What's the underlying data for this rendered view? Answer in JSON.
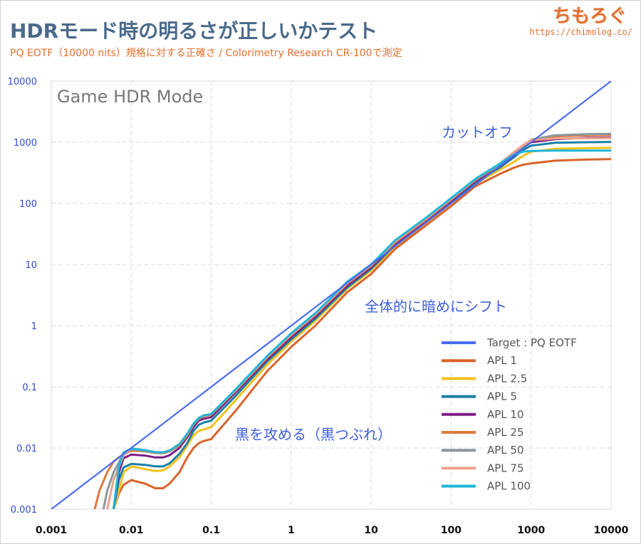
{
  "header": {
    "title": "HDRモード時の明るさが正しいかテスト",
    "subtitle": "PQ EOTF（10000 nits）規格に対する正確さ / Colorimetry Research CR-100で測定",
    "logo": "ちもろぐ",
    "url": "https://chimolog.co/"
  },
  "chart_data": {
    "type": "line",
    "title": "Game HDR Mode",
    "x_scale": "log",
    "y_scale": "log",
    "xlim": [
      0.001,
      10000
    ],
    "ylim": [
      0.001,
      10000
    ],
    "x_ticks": [
      "0.001",
      "0.01",
      "0.1",
      "1",
      "10",
      "100",
      "1000",
      "10000"
    ],
    "y_ticks": [
      "0.001",
      "0.01",
      "0.1",
      "1",
      "10",
      "100",
      "1000",
      "10000"
    ],
    "grid": true,
    "legend_position": "bottom-right",
    "annotations": [
      "カットオフ",
      "全体的に暗めにシフト",
      "黒を攻める（黒つぶれ）"
    ],
    "series": [
      {
        "name": "Target : PQ EOTF",
        "color": "#4a6cf0",
        "x": [
          0.001,
          10000
        ],
        "y": [
          0.001,
          10000
        ]
      },
      {
        "name": "APL 1",
        "color": "#d9642a",
        "x": [
          0.005,
          0.006,
          0.007,
          0.008,
          0.01,
          0.015,
          0.02,
          0.025,
          0.03,
          0.04,
          0.05,
          0.06,
          0.07,
          0.08,
          0.1,
          0.2,
          0.5,
          1,
          2,
          5,
          10,
          20,
          50,
          100,
          200,
          400,
          600,
          800,
          1000,
          2000,
          5000,
          10000
        ],
        "y": [
          0.0007,
          0.001,
          0.0018,
          0.0025,
          0.003,
          0.0026,
          0.0022,
          0.0022,
          0.0026,
          0.004,
          0.007,
          0.01,
          0.012,
          0.013,
          0.014,
          0.04,
          0.18,
          0.45,
          1.0,
          3.5,
          7,
          18,
          45,
          90,
          190,
          300,
          380,
          430,
          450,
          500,
          520,
          530
        ]
      },
      {
        "name": "APL 2.5",
        "color": "#f2c21b",
        "x": [
          0.006,
          0.007,
          0.008,
          0.01,
          0.015,
          0.02,
          0.025,
          0.03,
          0.04,
          0.05,
          0.06,
          0.07,
          0.08,
          0.1,
          0.2,
          0.5,
          1,
          2,
          5,
          10,
          20,
          50,
          100,
          200,
          400,
          600,
          800,
          1000,
          2000,
          5000,
          10000
        ],
        "y": [
          0.001,
          0.002,
          0.004,
          0.005,
          0.0045,
          0.0042,
          0.0043,
          0.005,
          0.007,
          0.011,
          0.016,
          0.019,
          0.02,
          0.022,
          0.06,
          0.23,
          0.55,
          1.2,
          4,
          8,
          20,
          50,
          100,
          210,
          350,
          470,
          600,
          700,
          780,
          800,
          810
        ]
      },
      {
        "name": "APL 5",
        "color": "#1b7fa6",
        "x": [
          0.006,
          0.007,
          0.008,
          0.01,
          0.015,
          0.02,
          0.025,
          0.03,
          0.04,
          0.05,
          0.06,
          0.07,
          0.08,
          0.1,
          0.2,
          0.5,
          1,
          2,
          5,
          10,
          20,
          50,
          100,
          200,
          400,
          600,
          800,
          1000,
          2000,
          5000,
          10000
        ],
        "y": [
          0.001,
          0.003,
          0.0048,
          0.0055,
          0.0053,
          0.005,
          0.005,
          0.0056,
          0.008,
          0.012,
          0.019,
          0.024,
          0.026,
          0.028,
          0.07,
          0.26,
          0.6,
          1.3,
          4.2,
          8.5,
          21,
          52,
          105,
          220,
          380,
          560,
          750,
          880,
          980,
          1000,
          1010
        ]
      },
      {
        "name": "APL 10",
        "color": "#7b1f86",
        "x": [
          0.006,
          0.007,
          0.008,
          0.01,
          0.015,
          0.02,
          0.025,
          0.03,
          0.04,
          0.05,
          0.06,
          0.07,
          0.08,
          0.1,
          0.2,
          0.5,
          1,
          2,
          5,
          10,
          20,
          50,
          100,
          200,
          400,
          600,
          800,
          1000,
          2000,
          5000,
          10000
        ],
        "y": [
          0.001,
          0.004,
          0.0068,
          0.0078,
          0.0075,
          0.007,
          0.007,
          0.0076,
          0.01,
          0.015,
          0.022,
          0.028,
          0.03,
          0.032,
          0.08,
          0.28,
          0.65,
          1.4,
          4.5,
          9,
          22,
          54,
          110,
          230,
          400,
          600,
          820,
          1000,
          1120,
          1180,
          1200
        ]
      },
      {
        "name": "APL 25",
        "color": "#e07a3e",
        "x": [
          0.0035,
          0.004,
          0.005,
          0.006,
          0.008,
          0.01,
          0.015,
          0.02,
          0.025,
          0.03,
          0.04,
          0.05,
          0.06,
          0.07,
          0.08,
          0.1,
          0.2,
          0.5,
          1,
          2,
          5,
          10,
          20,
          50,
          100,
          200,
          400,
          600,
          800,
          1000,
          2000,
          5000,
          10000
        ],
        "y": [
          0.001,
          0.002,
          0.004,
          0.006,
          0.008,
          0.009,
          0.0088,
          0.0083,
          0.0082,
          0.0088,
          0.011,
          0.016,
          0.024,
          0.03,
          0.033,
          0.035,
          0.085,
          0.3,
          0.7,
          1.5,
          4.8,
          9.5,
          23,
          56,
          115,
          240,
          420,
          620,
          850,
          1050,
          1250,
          1300,
          1320
        ]
      },
      {
        "name": "APL 50",
        "color": "#8c969c",
        "x": [
          0.0045,
          0.005,
          0.006,
          0.008,
          0.01,
          0.015,
          0.02,
          0.025,
          0.03,
          0.04,
          0.05,
          0.06,
          0.07,
          0.08,
          0.1,
          0.2,
          0.5,
          1,
          2,
          5,
          10,
          20,
          50,
          100,
          200,
          400,
          600,
          800,
          1000,
          2000,
          5000,
          10000
        ],
        "y": [
          0.001,
          0.002,
          0.004,
          0.008,
          0.0095,
          0.009,
          0.0085,
          0.0084,
          0.009,
          0.0115,
          0.017,
          0.025,
          0.031,
          0.034,
          0.036,
          0.087,
          0.31,
          0.72,
          1.55,
          5,
          9.8,
          24,
          58,
          118,
          245,
          430,
          640,
          880,
          1100,
          1300,
          1350,
          1370
        ]
      },
      {
        "name": "APL 75",
        "color": "#eea08a",
        "x": [
          0.005,
          0.006,
          0.008,
          0.01,
          0.015,
          0.02,
          0.025,
          0.03,
          0.04,
          0.05,
          0.06,
          0.07,
          0.08,
          0.1,
          0.2,
          0.5,
          1,
          2,
          5,
          10,
          20,
          50,
          100,
          200,
          400,
          600,
          800,
          1000,
          2000,
          5000,
          10000
        ],
        "y": [
          0.001,
          0.003,
          0.0075,
          0.0098,
          0.0092,
          0.0086,
          0.0085,
          0.0091,
          0.0117,
          0.017,
          0.025,
          0.031,
          0.034,
          0.036,
          0.088,
          0.31,
          0.72,
          1.55,
          5,
          9.8,
          24,
          58,
          118,
          245,
          440,
          680,
          900,
          1080,
          1150,
          1160,
          1170
        ]
      },
      {
        "name": "APL 100",
        "color": "#1fb7d9",
        "x": [
          0.006,
          0.007,
          0.008,
          0.01,
          0.015,
          0.02,
          0.025,
          0.03,
          0.04,
          0.05,
          0.06,
          0.07,
          0.08,
          0.1,
          0.2,
          0.5,
          1,
          2,
          5,
          10,
          20,
          50,
          100,
          200,
          400,
          600,
          800,
          1000,
          2000,
          5000,
          10000
        ],
        "y": [
          0.001,
          0.005,
          0.0085,
          0.0098,
          0.0092,
          0.0085,
          0.0085,
          0.009,
          0.0115,
          0.017,
          0.025,
          0.031,
          0.034,
          0.036,
          0.09,
          0.32,
          0.75,
          1.6,
          5.2,
          10,
          25,
          60,
          122,
          250,
          440,
          620,
          700,
          720,
          730,
          730,
          730
        ]
      }
    ]
  }
}
